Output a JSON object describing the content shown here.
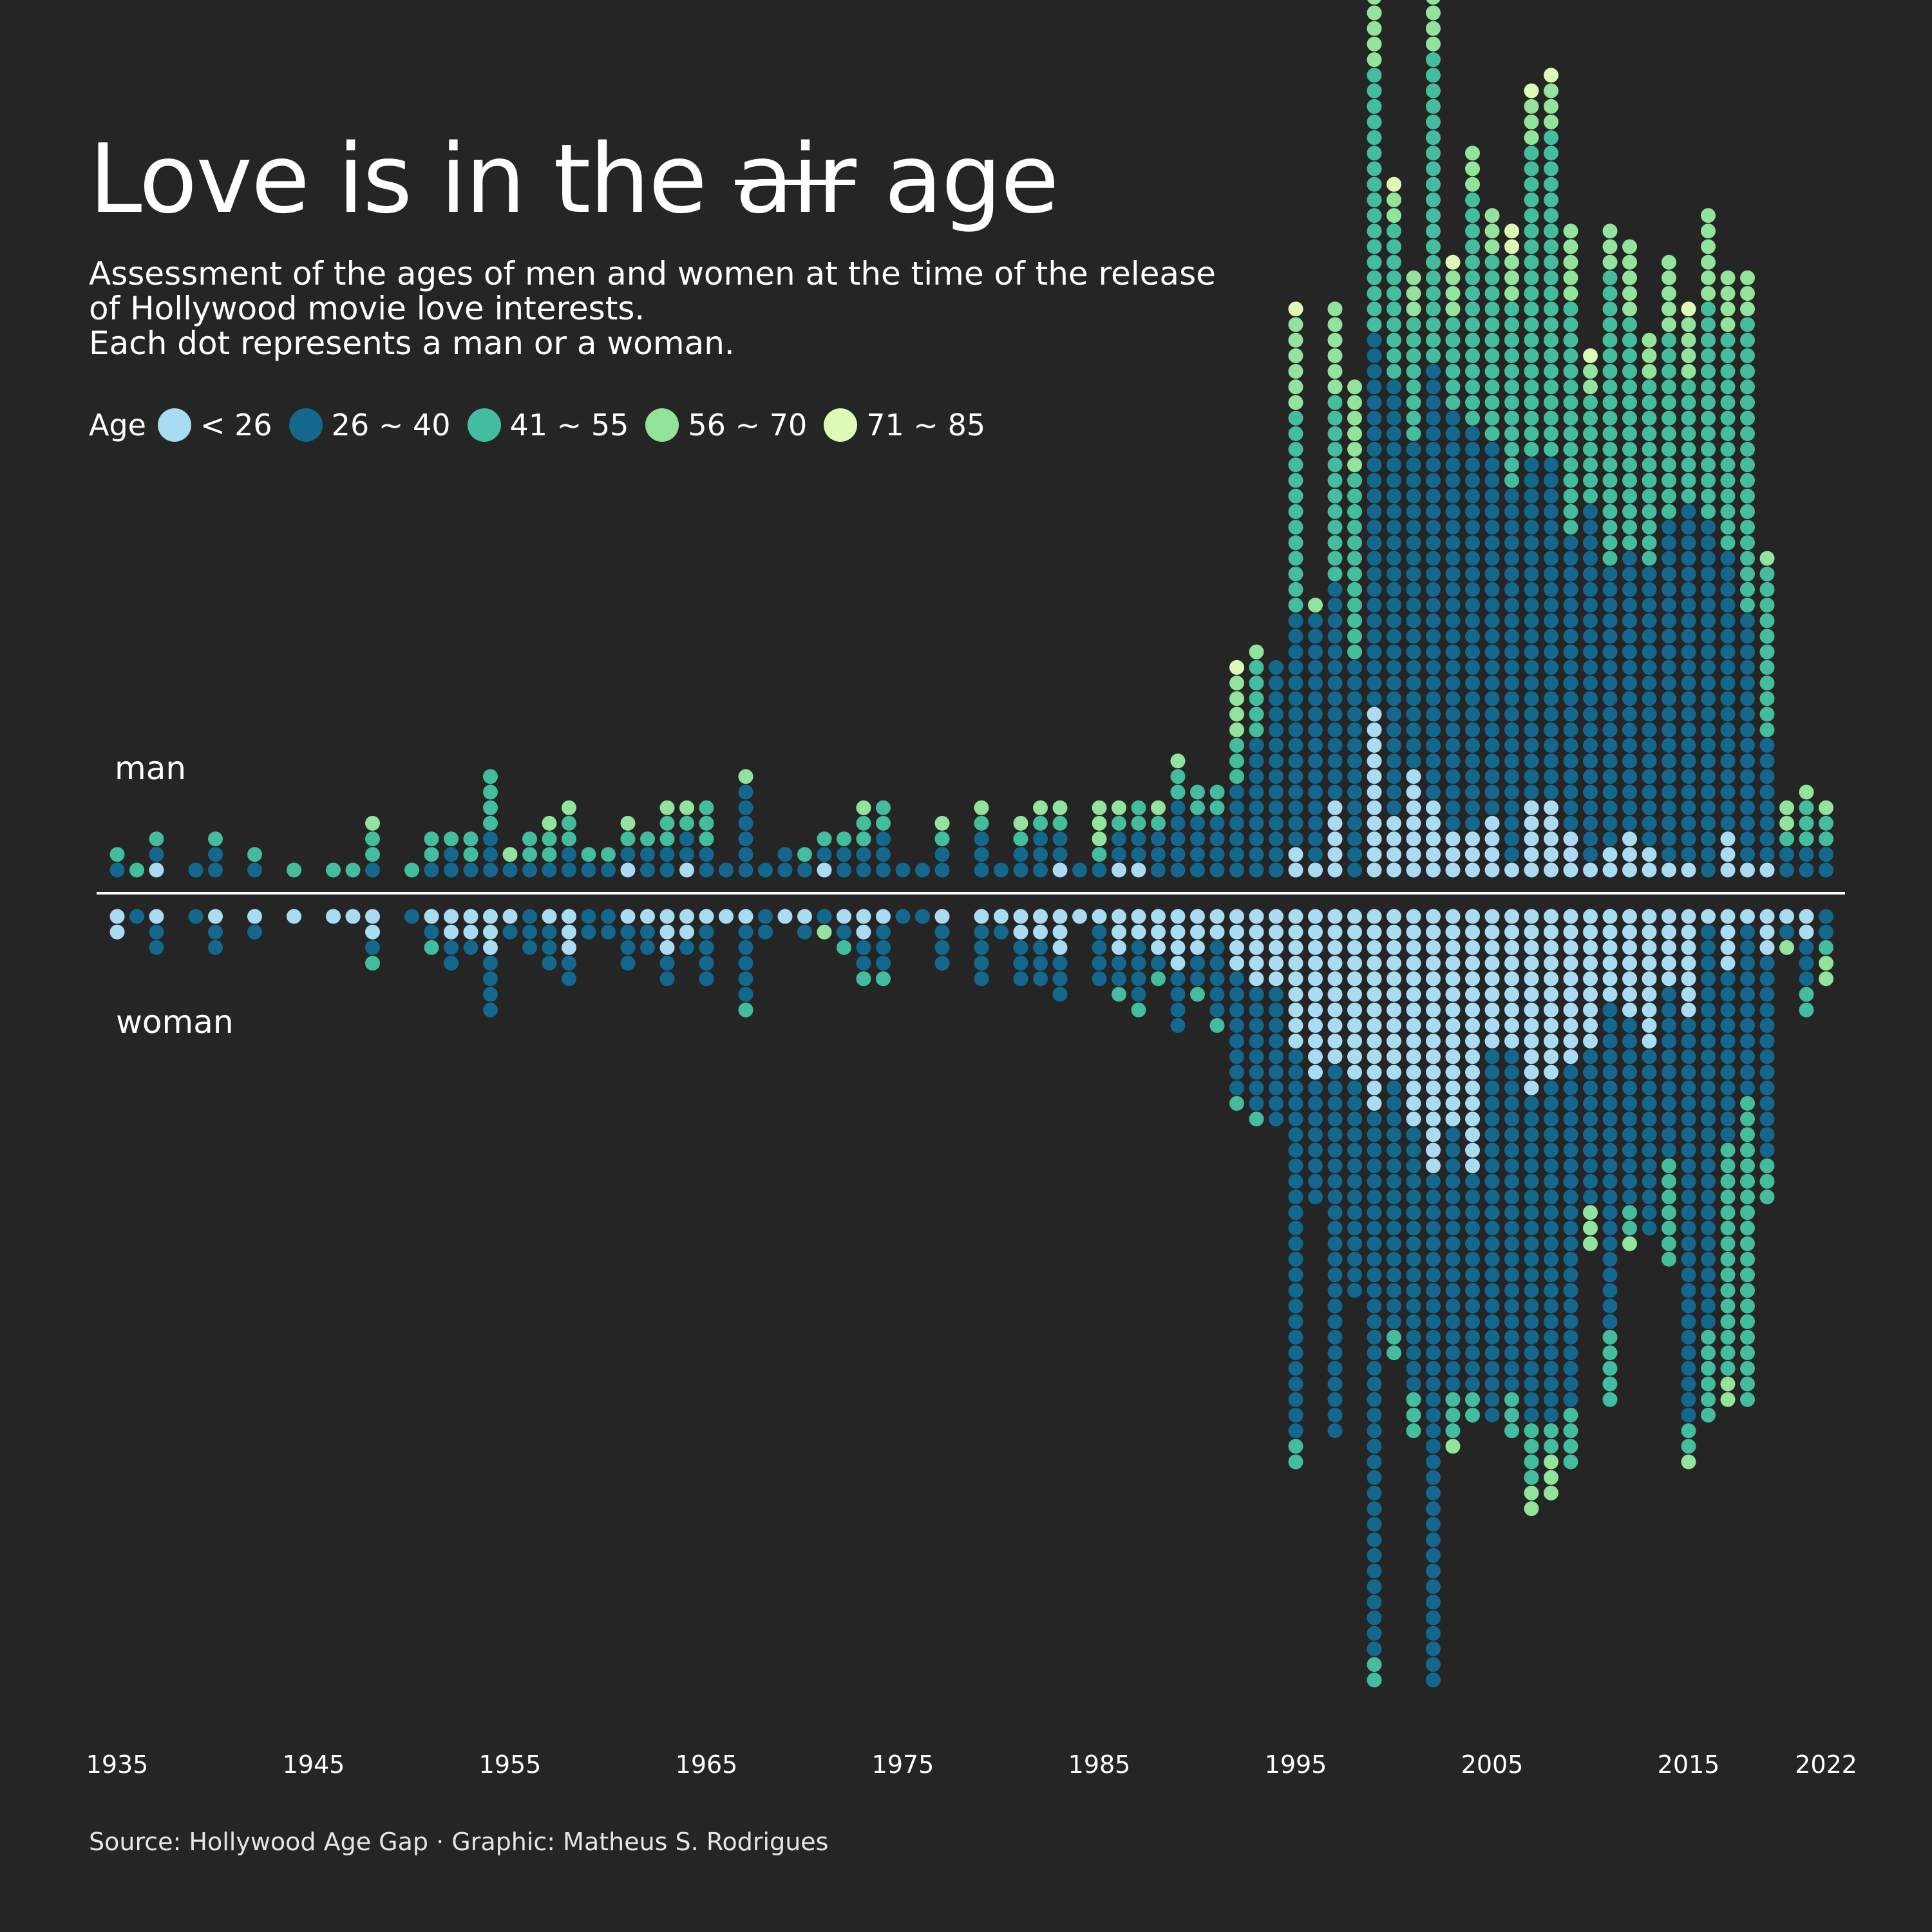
{
  "title": {
    "before": "Love is in the",
    "struck": "air",
    "after": "age"
  },
  "subtitle": [
    "Assessment of the ages of men and women at the time of the release",
    "of Hollywood movie love interests.",
    "Each dot represents a man or a woman."
  ],
  "legend": {
    "title": "Age",
    "items": [
      {
        "label": "< 26",
        "color": "#a9dcf2"
      },
      {
        "label": "26 ~ 40",
        "color": "#14688d"
      },
      {
        "label": "41 ~ 55",
        "color": "#44bd9e"
      },
      {
        "label": "56 ~ 70",
        "color": "#92e39b"
      },
      {
        "label": "71 ~ 85",
        "color": "#dffab7"
      }
    ]
  },
  "source": "Source: Hollywood Age Gap · Graphic: Matheus S. Rodrigues",
  "chart_data": {
    "type": "dot-column",
    "x_ticks": [
      "1935",
      "1945",
      "1955",
      "1965",
      "1975",
      "1985",
      "1995",
      "2005",
      "2015",
      "2022"
    ],
    "x_tick_values": [
      1935,
      1945,
      1955,
      1965,
      1975,
      1985,
      1995,
      2005,
      2015,
      2022
    ],
    "age_bins": [
      "< 26",
      "26 ~ 40",
      "41 ~ 55",
      "56 ~ 70",
      "71 ~ 85"
    ],
    "groups": [
      {
        "name": "man",
        "counts_note": "per year: [<26, 26~40, 41~55, 56~70, 71~85]",
        "data": {
          "1935": [
            0,
            1,
            1,
            0,
            0
          ],
          "1936": [
            0,
            0,
            1,
            0,
            0
          ],
          "1937": [
            1,
            1,
            1,
            0,
            0
          ],
          "1939": [
            0,
            1,
            0,
            0,
            0
          ],
          "1940": [
            0,
            2,
            1,
            0,
            0
          ],
          "1942": [
            0,
            1,
            1,
            0,
            0
          ],
          "1944": [
            0,
            0,
            1,
            0,
            0
          ],
          "1946": [
            0,
            0,
            1,
            0,
            0
          ],
          "1947": [
            0,
            0,
            1,
            0,
            0
          ],
          "1948": [
            0,
            1,
            2,
            1,
            0
          ],
          "1950": [
            0,
            0,
            1,
            0,
            0
          ],
          "1951": [
            0,
            1,
            2,
            0,
            0
          ],
          "1952": [
            0,
            2,
            1,
            0,
            0
          ],
          "1953": [
            0,
            1,
            2,
            0,
            0
          ],
          "1954": [
            0,
            3,
            4,
            0,
            0
          ],
          "1955": [
            0,
            1,
            0,
            1,
            0
          ],
          "1956": [
            0,
            1,
            2,
            0,
            0
          ],
          "1957": [
            0,
            1,
            2,
            1,
            0
          ],
          "1958": [
            0,
            2,
            2,
            1,
            0
          ],
          "1959": [
            0,
            1,
            1,
            0,
            0
          ],
          "1960": [
            0,
            1,
            1,
            0,
            0
          ],
          "1961": [
            1,
            1,
            1,
            1,
            0
          ],
          "1962": [
            0,
            2,
            1,
            0,
            0
          ],
          "1963": [
            0,
            2,
            2,
            1,
            0
          ],
          "1964": [
            1,
            2,
            1,
            1,
            0
          ],
          "1965": [
            0,
            2,
            3,
            0,
            0
          ],
          "1966": [
            0,
            1,
            0,
            0,
            0
          ],
          "1967": [
            0,
            6,
            0,
            1,
            0
          ],
          "1968": [
            0,
            1,
            0,
            0,
            0
          ],
          "1969": [
            0,
            2,
            0,
            0,
            0
          ],
          "1970": [
            0,
            1,
            1,
            0,
            0
          ],
          "1971": [
            1,
            1,
            1,
            0,
            0
          ],
          "1972": [
            0,
            2,
            1,
            0,
            0
          ],
          "1973": [
            0,
            2,
            2,
            1,
            0
          ],
          "1974": [
            0,
            3,
            2,
            0,
            0
          ],
          "1975": [
            0,
            1,
            0,
            0,
            0
          ],
          "1976": [
            0,
            1,
            0,
            0,
            0
          ],
          "1977": [
            0,
            2,
            1,
            1,
            0
          ],
          "1979": [
            0,
            3,
            1,
            1,
            0
          ],
          "1980": [
            0,
            1,
            0,
            0,
            0
          ],
          "1981": [
            0,
            2,
            1,
            1,
            0
          ],
          "1982": [
            0,
            3,
            1,
            1,
            0
          ],
          "1983": [
            1,
            2,
            1,
            1,
            0
          ],
          "1984": [
            0,
            1,
            0,
            0,
            0
          ],
          "1985": [
            0,
            1,
            1,
            3,
            0
          ],
          "1986": [
            1,
            2,
            1,
            1,
            0
          ],
          "1987": [
            1,
            2,
            2,
            0,
            0
          ],
          "1988": [
            0,
            3,
            1,
            1,
            0
          ],
          "1989": [
            0,
            5,
            2,
            1,
            0
          ],
          "1990": [
            0,
            4,
            2,
            0,
            0
          ],
          "1991": [
            0,
            4,
            2,
            0,
            0
          ],
          "1992": [
            0,
            6,
            3,
            4,
            1
          ],
          "1993": [
            0,
            9,
            5,
            1,
            0
          ],
          "1994": [
            0,
            14,
            0,
            0,
            0
          ],
          "1995": [
            2,
            15,
            13,
            6,
            1
          ],
          "1996": [
            1,
            16,
            0,
            1,
            0
          ],
          "1997": [
            5,
            14,
            12,
            6,
            0
          ],
          "1998": [
            0,
            14,
            12,
            6,
            0
          ],
          "1999": [
            11,
            24,
            17,
            11,
            2
          ],
          "2000": [
            4,
            28,
            10,
            2,
            1
          ],
          "2001": [
            7,
            21,
            8,
            3,
            0
          ],
          "2002": [
            5,
            28,
            20,
            11,
            2
          ],
          "2003": [
            3,
            27,
            6,
            3,
            1
          ],
          "2004": [
            3,
            26,
            15,
            3,
            0
          ],
          "2005": [
            4,
            24,
            12,
            3,
            0
          ],
          "2006": [
            1,
            24,
            12,
            3,
            2
          ],
          "2007": [
            5,
            22,
            20,
            3,
            1
          ],
          "2008": [
            5,
            22,
            21,
            3,
            1
          ],
          "2009": [
            3,
            19,
            15,
            5,
            0
          ],
          "2010": [
            1,
            23,
            7,
            2,
            1
          ],
          "2011": [
            2,
            18,
            19,
            3,
            0
          ],
          "2012": [
            3,
            18,
            15,
            5,
            0
          ],
          "2013": [
            2,
            18,
            12,
            3,
            0
          ],
          "2014": [
            1,
            22,
            12,
            5,
            0
          ],
          "2015": [
            1,
            23,
            8,
            4,
            1
          ],
          "2016": [
            0,
            23,
            14,
            6,
            0
          ],
          "2017": [
            3,
            18,
            14,
            4,
            0
          ],
          "2018": [
            1,
            16,
            19,
            3,
            0
          ],
          "2019": [
            1,
            8,
            11,
            1,
            0
          ],
          "2020": [
            0,
            2,
            1,
            2,
            0
          ],
          "2021": [
            0,
            2,
            3,
            1,
            0
          ],
          "2022": [
            0,
            2,
            2,
            1,
            0
          ]
        }
      },
      {
        "name": "woman",
        "counts_note": "per year: [<26, 26~40, 41~55, 56~70, 71~85]",
        "data": {
          "1935": [
            2,
            0,
            0,
            0,
            0
          ],
          "1936": [
            0,
            1,
            0,
            0,
            0
          ],
          "1937": [
            1,
            2,
            0,
            0,
            0
          ],
          "1939": [
            0,
            1,
            0,
            0,
            0
          ],
          "1940": [
            1,
            2,
            0,
            0,
            0
          ],
          "1942": [
            1,
            1,
            0,
            0,
            0
          ],
          "1944": [
            1,
            0,
            0,
            0,
            0
          ],
          "1946": [
            1,
            0,
            0,
            0,
            0
          ],
          "1947": [
            1,
            0,
            0,
            0,
            0
          ],
          "1948": [
            2,
            1,
            1,
            0,
            0
          ],
          "1950": [
            0,
            1,
            0,
            0,
            0
          ],
          "1951": [
            1,
            1,
            1,
            0,
            0
          ],
          "1952": [
            2,
            2,
            0,
            0,
            0
          ],
          "1953": [
            2,
            1,
            0,
            0,
            0
          ],
          "1954": [
            3,
            4,
            0,
            0,
            0
          ],
          "1955": [
            1,
            1,
            0,
            0,
            0
          ],
          "1956": [
            0,
            3,
            0,
            0,
            0
          ],
          "1957": [
            1,
            3,
            0,
            0,
            0
          ],
          "1958": [
            3,
            2,
            0,
            0,
            0
          ],
          "1959": [
            0,
            2,
            0,
            0,
            0
          ],
          "1960": [
            0,
            2,
            0,
            0,
            0
          ],
          "1961": [
            1,
            3,
            0,
            0,
            0
          ],
          "1962": [
            1,
            2,
            0,
            0,
            0
          ],
          "1963": [
            3,
            2,
            0,
            0,
            0
          ],
          "1964": [
            2,
            1,
            0,
            0,
            0
          ],
          "1965": [
            1,
            4,
            0,
            0,
            0
          ],
          "1966": [
            1,
            0,
            0,
            0,
            0
          ],
          "1967": [
            1,
            5,
            1,
            0,
            0
          ],
          "1968": [
            0,
            2,
            0,
            0,
            0
          ],
          "1969": [
            1,
            0,
            0,
            0,
            0
          ],
          "1970": [
            1,
            1,
            0,
            0,
            0
          ],
          "1971": [
            0,
            1,
            0,
            1,
            0
          ],
          "1972": [
            1,
            1,
            1,
            0,
            0
          ],
          "1973": [
            2,
            2,
            1,
            0,
            0
          ],
          "1974": [
            1,
            3,
            1,
            0,
            0
          ],
          "1975": [
            0,
            1,
            0,
            0,
            0
          ],
          "1976": [
            0,
            1,
            0,
            0,
            0
          ],
          "1977": [
            1,
            3,
            0,
            0,
            0
          ],
          "1979": [
            1,
            4,
            0,
            0,
            0
          ],
          "1980": [
            1,
            1,
            0,
            0,
            0
          ],
          "1981": [
            2,
            3,
            0,
            0,
            0
          ],
          "1982": [
            2,
            3,
            0,
            0,
            0
          ],
          "1983": [
            3,
            3,
            0,
            0,
            0
          ],
          "1984": [
            1,
            0,
            0,
            0,
            0
          ],
          "1985": [
            1,
            4,
            0,
            0,
            0
          ],
          "1986": [
            3,
            2,
            1,
            0,
            0
          ],
          "1987": [
            2,
            4,
            1,
            0,
            0
          ],
          "1988": [
            3,
            1,
            1,
            0,
            0
          ],
          "1989": [
            4,
            4,
            0,
            0,
            0
          ],
          "1990": [
            3,
            2,
            1,
            0,
            0
          ],
          "1991": [
            2,
            5,
            1,
            0,
            0
          ],
          "1992": [
            4,
            8,
            1,
            0,
            0
          ],
          "1993": [
            5,
            8,
            1,
            0,
            0
          ],
          "1994": [
            5,
            9,
            0,
            0,
            0
          ],
          "1995": [
            9,
            25,
            2,
            0,
            0
          ],
          "1996": [
            11,
            8,
            0,
            0,
            0
          ],
          "1997": [
            10,
            24,
            0,
            0,
            0
          ],
          "1998": [
            11,
            14,
            0,
            0,
            0
          ],
          "1999": [
            13,
            35,
            2,
            0,
            0
          ],
          "2000": [
            11,
            16,
            2,
            0,
            0
          ],
          "2001": [
            14,
            17,
            3,
            0,
            0
          ],
          "2002": [
            17,
            33,
            0,
            0,
            0
          ],
          "2003": [
            14,
            17,
            3,
            1,
            0
          ],
          "2004": [
            17,
            14,
            2,
            0,
            0
          ],
          "2005": [
            9,
            24,
            0,
            0,
            0
          ],
          "2006": [
            9,
            22,
            3,
            0,
            0
          ],
          "2007": [
            12,
            21,
            4,
            2,
            0
          ],
          "2008": [
            11,
            22,
            2,
            3,
            0
          ],
          "2009": [
            10,
            22,
            4,
            0,
            0
          ],
          "2010": [
            9,
            10,
            0,
            3,
            0
          ],
          "2011": [
            6,
            21,
            5,
            0,
            0
          ],
          "2012": [
            7,
            12,
            2,
            1,
            0
          ],
          "2013": [
            9,
            12,
            0,
            0,
            0
          ],
          "2014": [
            5,
            11,
            7,
            0,
            0
          ],
          "2015": [
            7,
            26,
            2,
            1,
            0
          ],
          "2016": [
            1,
            26,
            6,
            0,
            0
          ],
          "2017": [
            4,
            11,
            15,
            2,
            0
          ],
          "2018": [
            1,
            11,
            20,
            0,
            0
          ],
          "2019": [
            3,
            13,
            3,
            0,
            0
          ],
          "2020": [
            1,
            1,
            0,
            1,
            0
          ],
          "2021": [
            2,
            3,
            2,
            0,
            0
          ],
          "2022": [
            0,
            2,
            1,
            2,
            0
          ]
        }
      }
    ]
  }
}
